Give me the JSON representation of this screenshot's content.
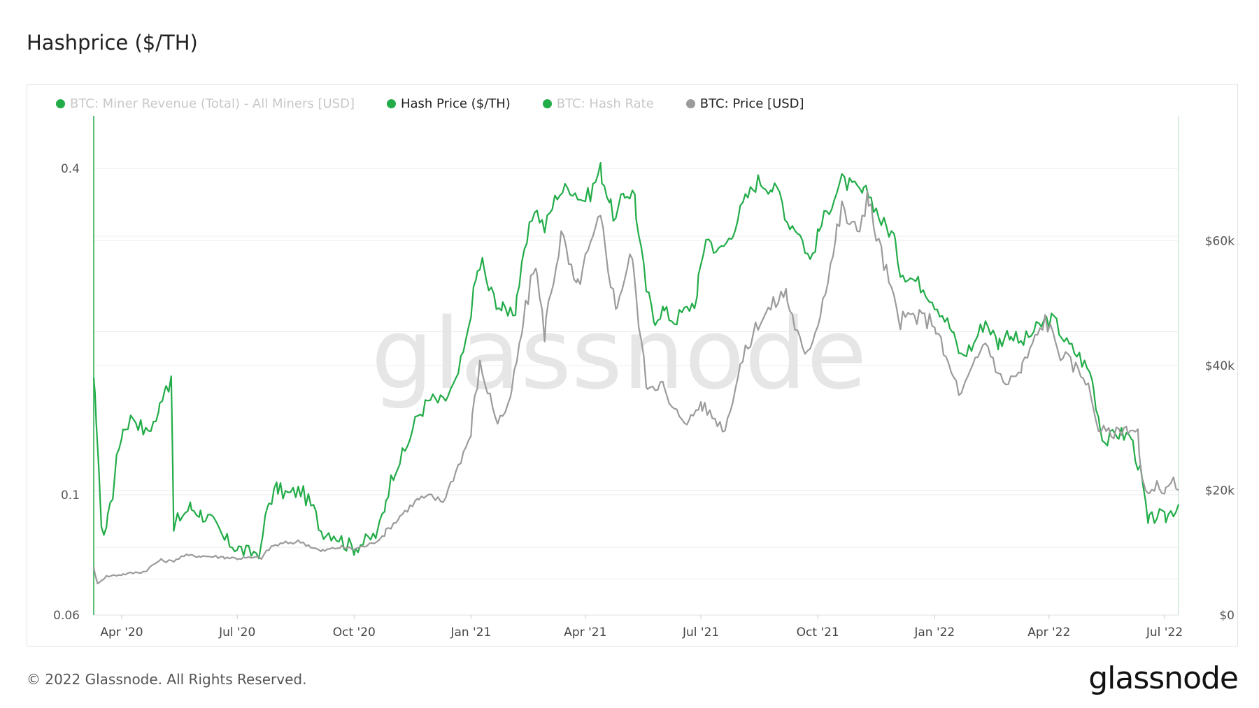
{
  "title": "Hashprice ($/TH)",
  "footer": "© 2022 Glassnode. All Rights Reserved.",
  "brand": "glassnode",
  "watermark": "glassnode",
  "colors": {
    "green": "#22ac48",
    "grey": "#9b9b9b",
    "faded": "#c8c8c8",
    "grid": "#eeeeee"
  },
  "chart_data": {
    "type": "line",
    "title": "Hashprice ($/TH)",
    "legend": [
      {
        "label": "BTC: Miner Revenue (Total) - All Miners [USD]",
        "color": "#22ac48",
        "visible": false
      },
      {
        "label": "Hash Price ($/TH)",
        "color": "#22ac48",
        "visible": true
      },
      {
        "label": "BTC: Hash Rate",
        "color": "#22ac48",
        "visible": false
      },
      {
        "label": "BTC: Price [USD]",
        "color": "#9b9b9b",
        "visible": true
      }
    ],
    "x_ticks": [
      "Apr '20",
      "Jul '20",
      "Oct '20",
      "Jan '21",
      "Apr '21",
      "Jul '21",
      "Oct '21",
      "Jan '22",
      "Apr '22",
      "Jul '22"
    ],
    "x_tick_dates": [
      "2020-04-01",
      "2020-07-01",
      "2020-10-01",
      "2021-01-01",
      "2021-04-01",
      "2021-07-01",
      "2021-10-01",
      "2022-01-01",
      "2022-04-01",
      "2022-07-01"
    ],
    "x_range": [
      "2020-03-10",
      "2022-07-12"
    ],
    "left_axis": {
      "scale": "log",
      "ticks": [
        "0.4",
        "0.1",
        "0.06"
      ],
      "tick_values": [
        0.4,
        0.1,
        0.06
      ],
      "range": [
        0.06,
        0.5
      ]
    },
    "right_axis": {
      "scale": "linear",
      "ticks": [
        "$60k",
        "$40k",
        "$20k",
        "$0"
      ],
      "tick_values": [
        60000,
        40000,
        20000,
        0
      ],
      "range": [
        0,
        80000
      ]
    },
    "series": [
      {
        "name": "Hash Price ($/TH)",
        "axis": "left",
        "color": "#22ac48",
        "points": [
          [
            "2020-03-10",
            0.16
          ],
          [
            "2020-03-12",
            0.14
          ],
          [
            "2020-03-16",
            0.085
          ],
          [
            "2020-03-20",
            0.088
          ],
          [
            "2020-03-25",
            0.1
          ],
          [
            "2020-04-01",
            0.13
          ],
          [
            "2020-04-10",
            0.14
          ],
          [
            "2020-04-20",
            0.13
          ],
          [
            "2020-04-30",
            0.14
          ],
          [
            "2020-05-05",
            0.16
          ],
          [
            "2020-05-10",
            0.16
          ],
          [
            "2020-05-12",
            0.085
          ],
          [
            "2020-05-15",
            0.09
          ],
          [
            "2020-05-25",
            0.095
          ],
          [
            "2020-06-01",
            0.093
          ],
          [
            "2020-06-10",
            0.09
          ],
          [
            "2020-06-20",
            0.083
          ],
          [
            "2020-07-01",
            0.08
          ],
          [
            "2020-07-10",
            0.078
          ],
          [
            "2020-07-20",
            0.079
          ],
          [
            "2020-07-25",
            0.095
          ],
          [
            "2020-08-01",
            0.103
          ],
          [
            "2020-08-10",
            0.1
          ],
          [
            "2020-08-20",
            0.102
          ],
          [
            "2020-08-30",
            0.094
          ],
          [
            "2020-09-05",
            0.086
          ],
          [
            "2020-09-15",
            0.085
          ],
          [
            "2020-09-25",
            0.081
          ],
          [
            "2020-10-01",
            0.08
          ],
          [
            "2020-10-10",
            0.082
          ],
          [
            "2020-10-20",
            0.085
          ],
          [
            "2020-10-25",
            0.095
          ],
          [
            "2020-11-01",
            0.11
          ],
          [
            "2020-11-10",
            0.12
          ],
          [
            "2020-11-20",
            0.14
          ],
          [
            "2020-11-30",
            0.15
          ],
          [
            "2020-12-10",
            0.148
          ],
          [
            "2020-12-20",
            0.16
          ],
          [
            "2020-12-28",
            0.19
          ],
          [
            "2021-01-05",
            0.25
          ],
          [
            "2021-01-10",
            0.27
          ],
          [
            "2021-01-15",
            0.24
          ],
          [
            "2021-01-25",
            0.22
          ],
          [
            "2021-02-05",
            0.22
          ],
          [
            "2021-02-10",
            0.26
          ],
          [
            "2021-02-20",
            0.34
          ],
          [
            "2021-02-28",
            0.31
          ],
          [
            "2021-03-10",
            0.36
          ],
          [
            "2021-03-20",
            0.37
          ],
          [
            "2021-03-30",
            0.35
          ],
          [
            "2021-04-05",
            0.36
          ],
          [
            "2021-04-13",
            0.4
          ],
          [
            "2021-04-20",
            0.35
          ],
          [
            "2021-04-25",
            0.32
          ],
          [
            "2021-05-01",
            0.36
          ],
          [
            "2021-05-10",
            0.36
          ],
          [
            "2021-05-13",
            0.3
          ],
          [
            "2021-05-19",
            0.24
          ],
          [
            "2021-05-25",
            0.21
          ],
          [
            "2021-06-01",
            0.22
          ],
          [
            "2021-06-10",
            0.21
          ],
          [
            "2021-06-20",
            0.22
          ],
          [
            "2021-06-28",
            0.23
          ],
          [
            "2021-07-05",
            0.3
          ],
          [
            "2021-07-15",
            0.28
          ],
          [
            "2021-07-25",
            0.3
          ],
          [
            "2021-08-05",
            0.35
          ],
          [
            "2021-08-15",
            0.38
          ],
          [
            "2021-08-25",
            0.37
          ],
          [
            "2021-09-01",
            0.36
          ],
          [
            "2021-09-07",
            0.32
          ],
          [
            "2021-09-15",
            0.31
          ],
          [
            "2021-09-25",
            0.27
          ],
          [
            "2021-10-01",
            0.3
          ],
          [
            "2021-10-10",
            0.34
          ],
          [
            "2021-10-20",
            0.38
          ],
          [
            "2021-10-28",
            0.37
          ],
          [
            "2021-11-05",
            0.36
          ],
          [
            "2021-11-10",
            0.36
          ],
          [
            "2021-11-20",
            0.32
          ],
          [
            "2021-11-30",
            0.3
          ],
          [
            "2021-12-05",
            0.26
          ],
          [
            "2021-12-15",
            0.25
          ],
          [
            "2021-12-25",
            0.24
          ],
          [
            "2022-01-05",
            0.22
          ],
          [
            "2022-01-15",
            0.2
          ],
          [
            "2022-01-22",
            0.18
          ],
          [
            "2022-02-01",
            0.19
          ],
          [
            "2022-02-10",
            0.21
          ],
          [
            "2022-02-20",
            0.19
          ],
          [
            "2022-03-01",
            0.2
          ],
          [
            "2022-03-10",
            0.19
          ],
          [
            "2022-03-20",
            0.2
          ],
          [
            "2022-03-30",
            0.21
          ],
          [
            "2022-04-05",
            0.21
          ],
          [
            "2022-04-15",
            0.19
          ],
          [
            "2022-04-25",
            0.18
          ],
          [
            "2022-05-05",
            0.165
          ],
          [
            "2022-05-10",
            0.14
          ],
          [
            "2022-05-15",
            0.125
          ],
          [
            "2022-05-25",
            0.13
          ],
          [
            "2022-06-05",
            0.128
          ],
          [
            "2022-06-12",
            0.11
          ],
          [
            "2022-06-18",
            0.088
          ],
          [
            "2022-06-25",
            0.092
          ],
          [
            "2022-07-01",
            0.09
          ],
          [
            "2022-07-08",
            0.094
          ],
          [
            "2022-07-12",
            0.096
          ]
        ]
      },
      {
        "name": "BTC: Price [USD]",
        "axis": "right",
        "color": "#9b9b9b",
        "points": [
          [
            "2020-03-10",
            7900
          ],
          [
            "2020-03-13",
            5000
          ],
          [
            "2020-03-20",
            6200
          ],
          [
            "2020-04-01",
            6500
          ],
          [
            "2020-04-20",
            7000
          ],
          [
            "2020-05-01",
            8800
          ],
          [
            "2020-05-10",
            8600
          ],
          [
            "2020-05-20",
            9500
          ],
          [
            "2020-06-01",
            9500
          ],
          [
            "2020-06-20",
            9300
          ],
          [
            "2020-07-01",
            9100
          ],
          [
            "2020-07-20",
            9200
          ],
          [
            "2020-07-28",
            11000
          ],
          [
            "2020-08-10",
            11600
          ],
          [
            "2020-08-20",
            11800
          ],
          [
            "2020-09-05",
            10200
          ],
          [
            "2020-09-20",
            10900
          ],
          [
            "2020-10-01",
            10600
          ],
          [
            "2020-10-15",
            11400
          ],
          [
            "2020-10-25",
            13000
          ],
          [
            "2020-11-05",
            15500
          ],
          [
            "2020-11-20",
            18500
          ],
          [
            "2020-12-01",
            19000
          ],
          [
            "2020-12-10",
            18200
          ],
          [
            "2020-12-20",
            23000
          ],
          [
            "2021-01-01",
            29000
          ],
          [
            "2021-01-08",
            40000
          ],
          [
            "2021-01-22",
            31000
          ],
          [
            "2021-02-01",
            34000
          ],
          [
            "2021-02-10",
            45000
          ],
          [
            "2021-02-21",
            57000
          ],
          [
            "2021-02-28",
            45000
          ],
          [
            "2021-03-13",
            61000
          ],
          [
            "2021-03-25",
            52000
          ],
          [
            "2021-04-13",
            63500
          ],
          [
            "2021-04-25",
            49000
          ],
          [
            "2021-05-08",
            58000
          ],
          [
            "2021-05-19",
            37000
          ],
          [
            "2021-06-01",
            37000
          ],
          [
            "2021-06-08",
            33000
          ],
          [
            "2021-06-22",
            31000
          ],
          [
            "2021-07-01",
            34000
          ],
          [
            "2021-07-20",
            29800
          ],
          [
            "2021-08-01",
            40000
          ],
          [
            "2021-08-15",
            47000
          ],
          [
            "2021-09-06",
            52000
          ],
          [
            "2021-09-21",
            41000
          ],
          [
            "2021-10-01",
            47000
          ],
          [
            "2021-10-15",
            60000
          ],
          [
            "2021-10-20",
            65000
          ],
          [
            "2021-11-01",
            61000
          ],
          [
            "2021-11-09",
            67500
          ],
          [
            "2021-11-20",
            58000
          ],
          [
            "2021-12-04",
            47000
          ],
          [
            "2021-12-15",
            48000
          ],
          [
            "2022-01-01",
            47000
          ],
          [
            "2022-01-10",
            41000
          ],
          [
            "2022-01-22",
            35000
          ],
          [
            "2022-02-10",
            44000
          ],
          [
            "2022-02-24",
            37000
          ],
          [
            "2022-03-10",
            39000
          ],
          [
            "2022-03-29",
            47500
          ],
          [
            "2022-04-10",
            42000
          ],
          [
            "2022-04-30",
            38000
          ],
          [
            "2022-05-10",
            30000
          ],
          [
            "2022-05-20",
            29000
          ],
          [
            "2022-06-01",
            30000
          ],
          [
            "2022-06-10",
            29500
          ],
          [
            "2022-06-13",
            22000
          ],
          [
            "2022-06-18",
            19000
          ],
          [
            "2022-06-25",
            21000
          ],
          [
            "2022-07-01",
            19500
          ],
          [
            "2022-07-08",
            21500
          ],
          [
            "2022-07-12",
            20000
          ]
        ]
      }
    ]
  }
}
